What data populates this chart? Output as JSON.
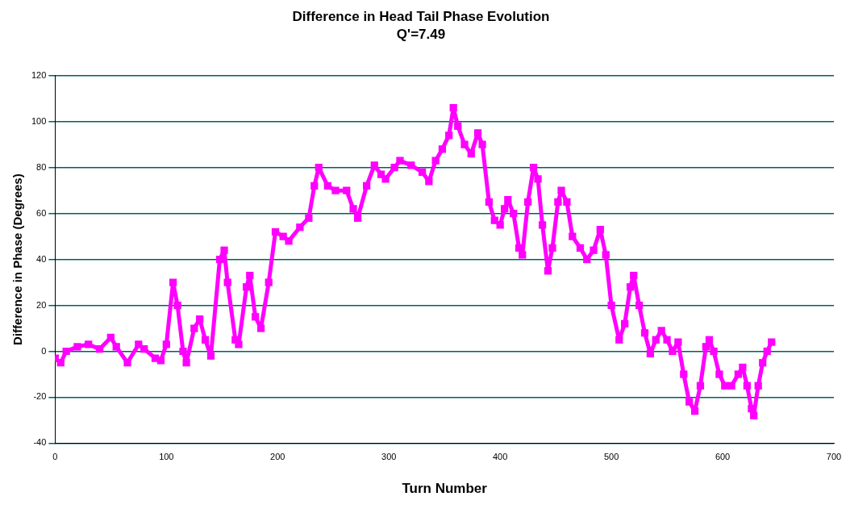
{
  "chart_data": {
    "type": "line",
    "title": "Difference in Head Tail Phase Evolution",
    "subtitle": "Q'=7.49",
    "xlabel": "Turn Number",
    "ylabel": "Difference in Phase (Degrees)",
    "xlim": [
      0,
      700
    ],
    "xticks": [
      0,
      100,
      200,
      300,
      400,
      500,
      600,
      700
    ],
    "ylim": [
      -40,
      120
    ],
    "yticks": [
      -40,
      -20,
      0,
      20,
      40,
      60,
      80,
      100,
      120
    ],
    "grid": "y",
    "legend": false,
    "marker": "square",
    "x": [
      0,
      5,
      10,
      20,
      30,
      40,
      50,
      55,
      65,
      75,
      80,
      90,
      95,
      100,
      106,
      110,
      115,
      118,
      125,
      130,
      135,
      140,
      148,
      152,
      155,
      162,
      165,
      172,
      175,
      180,
      185,
      192,
      198,
      205,
      210,
      220,
      228,
      233,
      237,
      245,
      252,
      262,
      268,
      272,
      280,
      287,
      293,
      297,
      305,
      310,
      320,
      330,
      336,
      342,
      348,
      354,
      358,
      362,
      368,
      374,
      380,
      384,
      390,
      395,
      400,
      404,
      407,
      412,
      417,
      420,
      425,
      430,
      434,
      438,
      443,
      447,
      452,
      455,
      460,
      465,
      472,
      478,
      484,
      490,
      495,
      500,
      507,
      512,
      517,
      520,
      525,
      530,
      535,
      540,
      545,
      550,
      555,
      560,
      565,
      570,
      575,
      580,
      585,
      588,
      592,
      597,
      602,
      608,
      614,
      618,
      622,
      626,
      628,
      632,
      636,
      640,
      644
    ],
    "series": [
      {
        "color": "#ff00ff",
        "values": [
          -3,
          -5,
          0,
          2,
          3,
          1,
          6,
          2,
          -5,
          3,
          1,
          -3,
          -4,
          3,
          30,
          20,
          0,
          -5,
          10,
          14,
          5,
          -2,
          40,
          44,
          30,
          5,
          3,
          28,
          33,
          15,
          10,
          30,
          52,
          50,
          48,
          54,
          58,
          72,
          80,
          72,
          70,
          70,
          62,
          58,
          72,
          81,
          77,
          75,
          80,
          83,
          81,
          78,
          74,
          83,
          88,
          94,
          106,
          98,
          90,
          86,
          95,
          90,
          65,
          57,
          55,
          62,
          66,
          60,
          45,
          42,
          65,
          80,
          75,
          55,
          35,
          45,
          65,
          70,
          65,
          50,
          45,
          40,
          44,
          53,
          42,
          20,
          5,
          12,
          28,
          33,
          20,
          8,
          -1,
          5,
          9,
          5,
          0,
          4,
          -10,
          -22,
          -26,
          -15,
          2,
          5,
          0,
          -10,
          -15,
          -15,
          -10,
          -7,
          -15,
          -25,
          -28,
          -15,
          -5,
          0,
          4
        ]
      }
    ]
  }
}
